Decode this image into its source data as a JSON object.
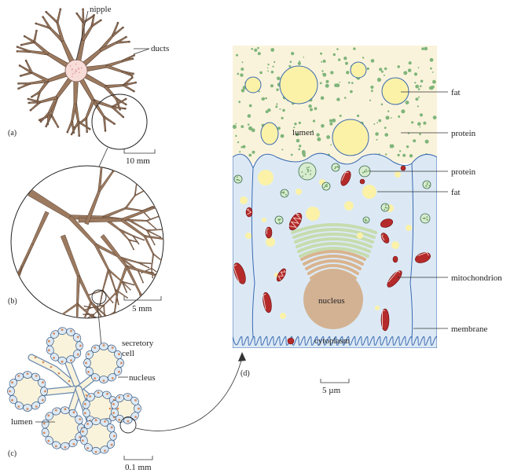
{
  "panels": {
    "a": {
      "tag": "(a)",
      "nipple": "nipple",
      "ducts": "ducts",
      "scale": "10 mm"
    },
    "b": {
      "tag": "(b)",
      "scale": "5 mm"
    },
    "c": {
      "tag": "(c)",
      "secretory_cell": "secretory\ncell",
      "secretory_1": "secretory",
      "secretory_2": "cell",
      "nucleus": "nucleus",
      "lumen": "lumen",
      "scale": "0.1 mm"
    },
    "d": {
      "tag": "(d)",
      "lumen": "lumen",
      "nucleus": "nucleus",
      "cytoplasm": "cytoplasm",
      "scale": "5 µm",
      "labels": {
        "fat_top": "fat",
        "protein_top": "protein",
        "protein_mid": "protein",
        "fat_mid": "fat",
        "mitochondrion": "mitochondrion",
        "membrane": "membrane"
      }
    }
  },
  "colors": {
    "duct": "#9b7a60",
    "duct_edge": "#5a4030",
    "nipple": "#f8dcd8",
    "cytoplasm": "#dce9f5",
    "milk": "#faf3dc",
    "fat": "#fbf2a8",
    "protein": "#7fb57a",
    "mito": "#b52a2a",
    "nucleus": "#d2b293",
    "golgi": "#c6dcae"
  }
}
